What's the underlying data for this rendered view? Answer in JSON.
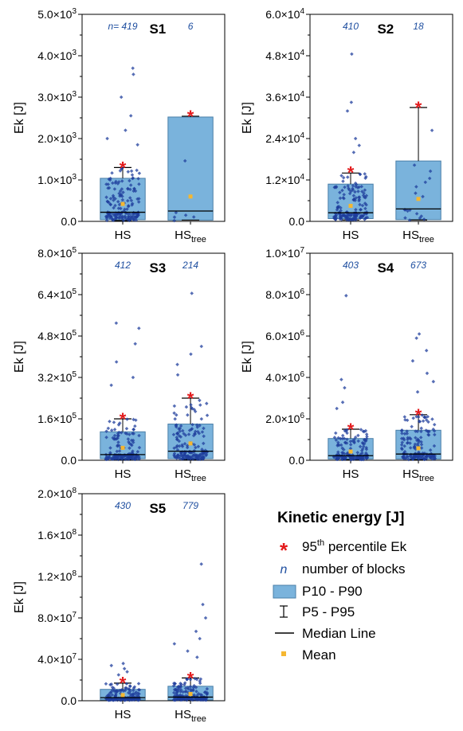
{
  "colors": {
    "box_fill": "#7ab3dc",
    "box_stroke": "#4a7fa8",
    "points": "#1f3d9c",
    "p95_marker": "#e31a1c",
    "mean_marker": "#f5b731",
    "n_text": "#1f4fa0"
  },
  "legend": {
    "title": "Kinetic energy [J]",
    "items": [
      {
        "symbol": "red-asterisk-icon",
        "label": "95",
        "sup": "th",
        "suffix": " percentile Ek"
      },
      {
        "symbol": "italic-n",
        "glyph": "n",
        "label": "number of blocks"
      },
      {
        "symbol": "blue-box-icon",
        "label": "P10 - P90"
      },
      {
        "symbol": "error-bar-icon",
        "label": "P5 - P95"
      },
      {
        "symbol": "black-line-icon",
        "label": "Median Line"
      },
      {
        "symbol": "yellow-square-icon",
        "label": "Mean"
      }
    ]
  },
  "chart_data": [
    {
      "type": "box",
      "panel": "S1",
      "ylabel": "Ek [J]",
      "ylim": [
        0,
        5000
      ],
      "y_ticks": [
        {
          "v": 0,
          "label": "0.0"
        },
        {
          "v": 1000,
          "label": "1.0×10",
          "exp": "3"
        },
        {
          "v": 2000,
          "label": "2.0×10",
          "exp": "3"
        },
        {
          "v": 3000,
          "label": "3.0×10",
          "exp": "3"
        },
        {
          "v": 4000,
          "label": "4.0×10",
          "exp": "3"
        },
        {
          "v": 5000,
          "label": "5.0×10",
          "exp": "3"
        }
      ],
      "groups": [
        {
          "name": "HS",
          "sub": "",
          "n_label": "n= 419",
          "p5": 20,
          "p10": 40,
          "median": 220,
          "p90": 1040,
          "p95": 1300,
          "mean": 420,
          "p95_star": 1300,
          "outliers": [
            3700,
            3550,
            3000,
            2550,
            2200,
            2000,
            1850
          ]
        },
        {
          "name": "HS",
          "sub": "tree",
          "n_label": "6",
          "p5": 30,
          "p10": 30,
          "median": 250,
          "p90": 2520,
          "p95": 2540,
          "mean": 600,
          "p95_star": 2540,
          "outliers": []
        }
      ]
    },
    {
      "type": "box",
      "panel": "S2",
      "ylabel": "Ek [J]",
      "ylim": [
        0,
        60000
      ],
      "y_ticks": [
        {
          "v": 0,
          "label": "0.0"
        },
        {
          "v": 12000,
          "label": "1.2×10",
          "exp": "4"
        },
        {
          "v": 24000,
          "label": "2.4×10",
          "exp": "4"
        },
        {
          "v": 36000,
          "label": "3.6×10",
          "exp": "4"
        },
        {
          "v": 48000,
          "label": "4.8×10",
          "exp": "4"
        },
        {
          "v": 60000,
          "label": "6.0×10",
          "exp": "4"
        }
      ],
      "groups": [
        {
          "name": "HS",
          "sub": "",
          "n_label": "410",
          "p5": 400,
          "p10": 800,
          "median": 2500,
          "p90": 10800,
          "p95": 14000,
          "mean": 4500,
          "p95_star": 14200,
          "outliers": [
            48500,
            34500,
            32000,
            24000,
            22000,
            20000
          ]
        },
        {
          "name": "HS",
          "sub": "tree",
          "n_label": "18",
          "p5": 400,
          "p10": 500,
          "median": 3600,
          "p90": 17500,
          "p95": 33000,
          "mean": 6500,
          "p95_star": 33000,
          "outliers": []
        }
      ]
    },
    {
      "type": "box",
      "panel": "S3",
      "ylabel": "Ek [J]",
      "ylim": [
        0,
        800000
      ],
      "y_ticks": [
        {
          "v": 0,
          "label": "0.0"
        },
        {
          "v": 160000,
          "label": "1.6×10",
          "exp": "5"
        },
        {
          "v": 320000,
          "label": "3.2×10",
          "exp": "5"
        },
        {
          "v": 480000,
          "label": "4.8×10",
          "exp": "5"
        },
        {
          "v": 640000,
          "label": "6.4×10",
          "exp": "5"
        },
        {
          "v": 800000,
          "label": "8.0×10",
          "exp": "5"
        }
      ],
      "groups": [
        {
          "name": "HS",
          "sub": "",
          "n_label": "412",
          "p5": 3000,
          "p10": 6000,
          "median": 22000,
          "p90": 110000,
          "p95": 160000,
          "mean": 48000,
          "p95_star": 160000,
          "outliers": [
            530000,
            510000,
            450000,
            380000,
            320000,
            290000
          ]
        },
        {
          "name": "HS",
          "sub": "tree",
          "n_label": "214",
          "p5": 3000,
          "p10": 6000,
          "median": 35000,
          "p90": 140000,
          "p95": 240000,
          "mean": 65000,
          "p95_star": 240000,
          "outliers": [
            645000,
            440000,
            410000,
            370000,
            330000
          ]
        }
      ]
    },
    {
      "type": "box",
      "panel": "S4",
      "ylabel": "Ek [J]",
      "ylim": [
        0,
        10000000
      ],
      "y_ticks": [
        {
          "v": 0,
          "label": "0.0"
        },
        {
          "v": 2000000,
          "label": "2.0×10",
          "exp": "6"
        },
        {
          "v": 4000000,
          "label": "4.0×10",
          "exp": "6"
        },
        {
          "v": 6000000,
          "label": "6.0×10",
          "exp": "6"
        },
        {
          "v": 8000000,
          "label": "8.0×10",
          "exp": "6"
        },
        {
          "v": 10000000,
          "label": "1.0×10",
          "exp": "7"
        }
      ],
      "groups": [
        {
          "name": "HS",
          "sub": "",
          "n_label": "403",
          "p5": 30000,
          "p10": 60000,
          "median": 220000,
          "p90": 1050000,
          "p95": 1500000,
          "mean": 420000,
          "p95_star": 1500000,
          "outliers": [
            7950000,
            3900000,
            3500000,
            2800000,
            2500000
          ]
        },
        {
          "name": "HS",
          "sub": "tree",
          "n_label": "673",
          "p5": 30000,
          "p10": 60000,
          "median": 300000,
          "p90": 1450000,
          "p95": 2200000,
          "mean": 580000,
          "p95_star": 2200000,
          "outliers": [
            6100000,
            5900000,
            5300000,
            4800000,
            4200000,
            3800000,
            3300000
          ]
        }
      ]
    },
    {
      "type": "box",
      "panel": "S5",
      "ylabel": "Ek [J]",
      "ylim": [
        0,
        200000000
      ],
      "y_ticks": [
        {
          "v": 0,
          "label": "0.0"
        },
        {
          "v": 40000000,
          "label": "4.0×10",
          "exp": "7"
        },
        {
          "v": 80000000,
          "label": "8.0×10",
          "exp": "7"
        },
        {
          "v": 120000000,
          "label": "1.2×10",
          "exp": "8"
        },
        {
          "v": 160000000,
          "label": "1.6×10",
          "exp": "8"
        },
        {
          "v": 200000000,
          "label": "2.0×10",
          "exp": "8"
        }
      ],
      "groups": [
        {
          "name": "HS",
          "sub": "",
          "n_label": "430",
          "p5": 300000,
          "p10": 800000,
          "median": 3000000,
          "p90": 11000000,
          "p95": 17000000,
          "mean": 5500000,
          "p95_star": 17500000,
          "outliers": [
            36000000,
            34000000,
            31000000,
            28000000,
            25000000
          ]
        },
        {
          "name": "HS",
          "sub": "tree",
          "n_label": "779",
          "p5": 300000,
          "p10": 800000,
          "median": 3500000,
          "p90": 14000000,
          "p95": 22000000,
          "mean": 6500000,
          "p95_star": 22000000,
          "outliers": [
            132000000,
            93000000,
            80000000,
            67000000,
            60000000,
            55000000,
            48000000,
            42000000
          ]
        }
      ]
    }
  ]
}
